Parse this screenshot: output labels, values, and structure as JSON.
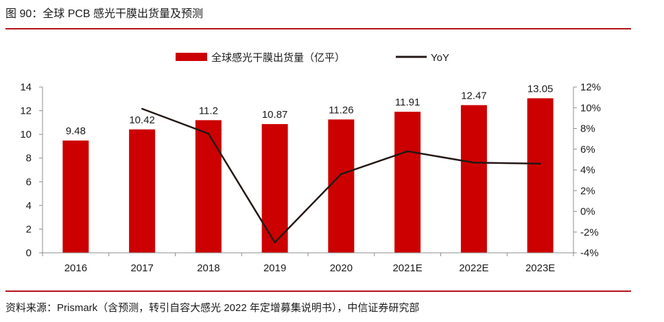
{
  "caption": "图 90：全球 PCB 感光干膜出货量及预测",
  "source": "资料来源：Prismark（含预测，转引自容大感光 2022 年定增募集说明书），中信证券研究部",
  "colors": {
    "bar": "#cc0000",
    "line": "#231815",
    "rule": "#b4111a"
  },
  "chart_data": {
    "type": "bar",
    "categories": [
      "2016",
      "2017",
      "2018",
      "2019",
      "2020",
      "2021E",
      "2022E",
      "2023E"
    ],
    "series": [
      {
        "name": "全球感光干膜出货量（亿平）",
        "type": "bar",
        "axis": "left",
        "values": [
          9.48,
          10.42,
          11.2,
          10.87,
          11.26,
          11.91,
          12.47,
          13.05
        ],
        "labels": [
          "9.48",
          "10.42",
          "11.2",
          "10.87",
          "11.26",
          "11.91",
          "12.47",
          "13.05"
        ]
      },
      {
        "name": "YoY",
        "type": "line",
        "axis": "right",
        "values": [
          null,
          9.9,
          7.5,
          -3.0,
          3.6,
          5.8,
          4.7,
          4.6
        ]
      }
    ],
    "y_left": {
      "min": 0,
      "max": 14,
      "ticks": [
        "0",
        "2",
        "4",
        "6",
        "8",
        "10",
        "12",
        "14"
      ]
    },
    "y_right": {
      "min": -4,
      "max": 12,
      "ticks": [
        "-4%",
        "-2%",
        "0%",
        "2%",
        "4%",
        "6%",
        "8%",
        "10%",
        "12%"
      ]
    },
    "legend": "top-center",
    "grid": false
  }
}
